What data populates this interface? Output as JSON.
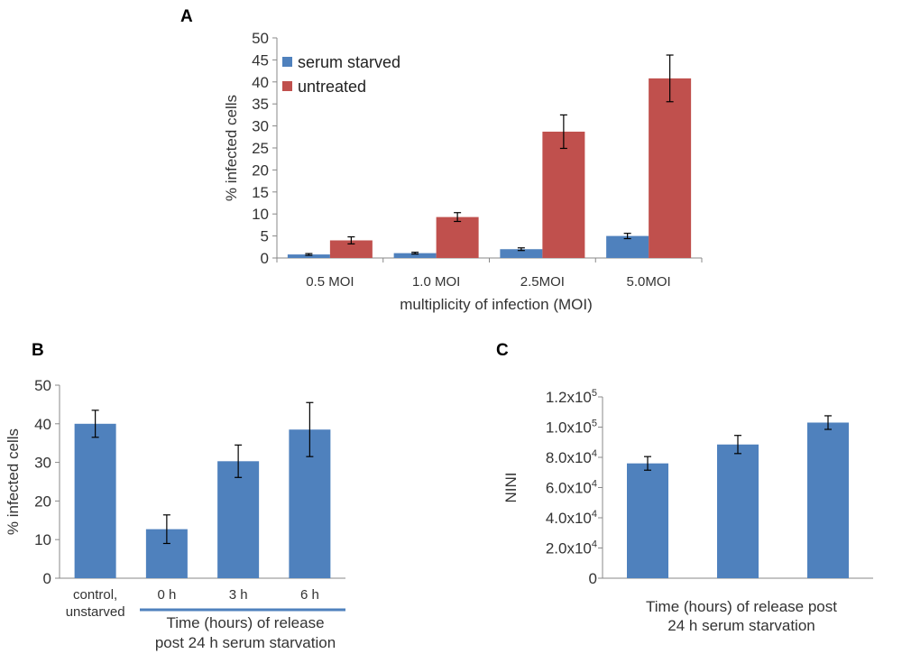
{
  "chart_data": [
    {
      "panel": "A",
      "type": "bar",
      "categories": [
        "0.5 MOI",
        "1.0 MOI",
        "2.5MOI",
        "5.0MOI"
      ],
      "series": [
        {
          "name": "serum starved",
          "color": "#4F81BD",
          "values": [
            0.8,
            1.1,
            2.0,
            5.0
          ],
          "errors": [
            0.2,
            0.2,
            0.3,
            0.6
          ]
        },
        {
          "name": "untreated",
          "color": "#C0504D",
          "values": [
            4.0,
            9.3,
            28.7,
            40.8
          ],
          "errors": [
            0.8,
            1.0,
            3.8,
            5.3
          ]
        }
      ],
      "xlabel": "multiplicity of infection (MOI)",
      "ylabel": "%  infected cells",
      "ylim": [
        0,
        50
      ],
      "yticks": [
        "0",
        "5",
        "10",
        "15",
        "20",
        "25",
        "30",
        "35",
        "40",
        "45",
        "50"
      ],
      "legend": "top-left"
    },
    {
      "panel": "B",
      "type": "bar",
      "categories": [
        "control,\nunstarved",
        "0 h",
        "3 h",
        "6 h"
      ],
      "series": [
        {
          "name": "% infected cells",
          "color": "#4F81BD",
          "values": [
            40.0,
            12.7,
            30.3,
            38.5
          ],
          "errors": [
            3.5,
            3.7,
            4.2,
            7.0
          ]
        }
      ],
      "group_label": "Time (hours)  of release\npost 24 h serum starvation",
      "ylabel": "% infected cells",
      "ylim": [
        0,
        50
      ],
      "yticks": [
        "0",
        "10",
        "20",
        "30",
        "40",
        "50"
      ]
    },
    {
      "panel": "C",
      "type": "bar",
      "categories": [
        "",
        "",
        ""
      ],
      "series": [
        {
          "name": "NINI",
          "color": "#4F81BD",
          "values": [
            76000,
            88500,
            103000
          ],
          "errors": [
            4500,
            6000,
            4500
          ]
        }
      ],
      "xlabel": "Time (hours)  of release post\n24 h serum starvation",
      "ylabel": "NINI",
      "ylim": [
        0,
        120000
      ],
      "yticks": [
        {
          "value": 0,
          "base": "0",
          "exp": ""
        },
        {
          "value": 20000,
          "base": "2.0x10",
          "exp": "4"
        },
        {
          "value": 40000,
          "base": "4.0x10",
          "exp": "4"
        },
        {
          "value": 60000,
          "base": "6.0x10",
          "exp": "4"
        },
        {
          "value": 80000,
          "base": "8.0x10",
          "exp": "4"
        },
        {
          "value": 100000,
          "base": "1.0x10",
          "exp": "5"
        },
        {
          "value": 120000,
          "base": "1.2x10",
          "exp": "5"
        }
      ]
    }
  ]
}
